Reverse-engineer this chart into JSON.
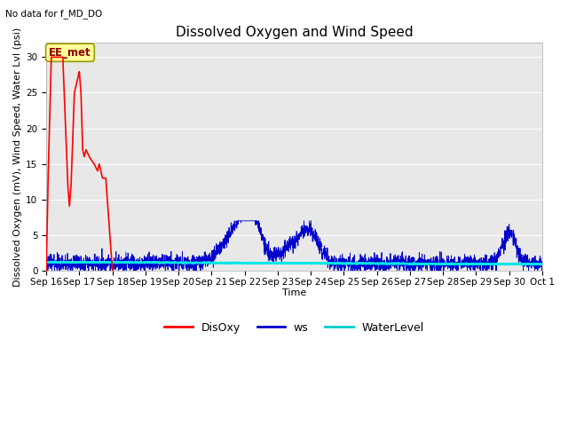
{
  "title": "Dissolved Oxygen and Wind Speed",
  "subtitle": "No data for f_MD_DO",
  "xlabel": "Time",
  "ylabel": "Dissolved Oxygen (mV), Wind Speed, Water Lvl (psi)",
  "annotation": "EE_met",
  "ylim": [
    0,
    32
  ],
  "yticks": [
    0,
    5,
    10,
    15,
    20,
    25,
    30
  ],
  "bg_color": "#e8e8e8",
  "fig_bg_color": "#ffffff",
  "legend_labels": [
    "DisOxy",
    "ws",
    "WaterLevel"
  ],
  "legend_colors": [
    "#ff0000",
    "#0000cd",
    "#00cccc"
  ],
  "disoxy_color": "#ff0000",
  "ws_color": "#0000cd",
  "water_color": "#00e5e5",
  "title_fontsize": 11,
  "axis_fontsize": 8,
  "tick_fontsize": 7.5,
  "xtick_labels": [
    "Sep 16",
    "Sep 17",
    "Sep 18",
    "Sep 19",
    "Sep 20",
    "Sep 21",
    "Sep 22",
    "Sep 23",
    "Sep 24",
    "Sep 25",
    "Sep 26",
    "Sep 27",
    "Sep 28",
    "Sep 29",
    "Sep 30",
    "Oct 1"
  ]
}
